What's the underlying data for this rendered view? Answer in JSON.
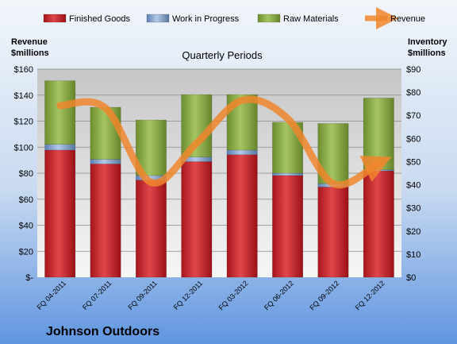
{
  "chart_data": {
    "type": "bar",
    "stacked": true,
    "subtitle": "Quarterly Periods",
    "company": "Johnson Outdoors",
    "y_left_label_1": "Revenue",
    "y_left_label_2": "$millions",
    "y_right_label_1": "Inventory",
    "y_right_label_2": "$millions",
    "categories": [
      "FQ 04-2011",
      "FQ 07-2011",
      "FQ 09-2011",
      "FQ 12-2011",
      "FQ 03-2012",
      "FQ 06-2012",
      "FQ 09-2012",
      "FQ 12-2012"
    ],
    "y_left_ticks": [
      "$-",
      "$20",
      "$40",
      "$60",
      "$80",
      "$100",
      "$120",
      "$140",
      "$160"
    ],
    "y_right_ticks": [
      "$0",
      "$10",
      "$20",
      "$30",
      "$40",
      "$50",
      "$60",
      "$70",
      "$80",
      "$90"
    ],
    "y_left_range": [
      0,
      160
    ],
    "y_right_range": [
      0,
      90
    ],
    "grid": true,
    "legend_position": "top",
    "series": [
      {
        "name": "Finished Goods",
        "axis": "right",
        "color": "#c0272d",
        "values": [
          55,
          49,
          42,
          50,
          53,
          44,
          39,
          46
        ]
      },
      {
        "name": "Work in Progress",
        "axis": "right",
        "color": "#7f9cc8",
        "values": [
          2.5,
          2,
          2,
          2,
          2,
          1,
          1.5,
          0.5
        ]
      },
      {
        "name": "Raw Materials",
        "axis": "right",
        "color": "#8aab45",
        "values": [
          27.5,
          22.5,
          24,
          27,
          24,
          22,
          26,
          31
        ]
      },
      {
        "name": "Revenue",
        "axis": "left",
        "type": "line",
        "color": "#f0862d",
        "values": [
          132,
          130,
          73,
          103,
          136,
          122,
          72,
          88
        ]
      }
    ]
  }
}
